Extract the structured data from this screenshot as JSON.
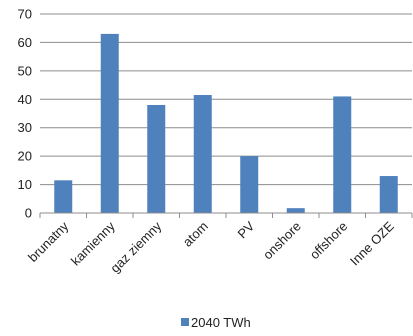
{
  "chart_data": {
    "type": "bar",
    "categories": [
      "brunatny",
      "kamienny",
      "gaz ziemny",
      "atom",
      "PV",
      "onshore",
      "offshore",
      "Inne OZE"
    ],
    "series": [
      {
        "name": "2040 TWh",
        "values": [
          11.5,
          63,
          38,
          41.5,
          20,
          1.7,
          41,
          13
        ],
        "color": "#4f81bd"
      }
    ],
    "ylim": [
      0,
      70
    ],
    "yticks": [
      0,
      10,
      20,
      30,
      40,
      50,
      60,
      70
    ],
    "grid": true,
    "legend": "bottom",
    "title": "",
    "xlabel": "",
    "ylabel": ""
  }
}
